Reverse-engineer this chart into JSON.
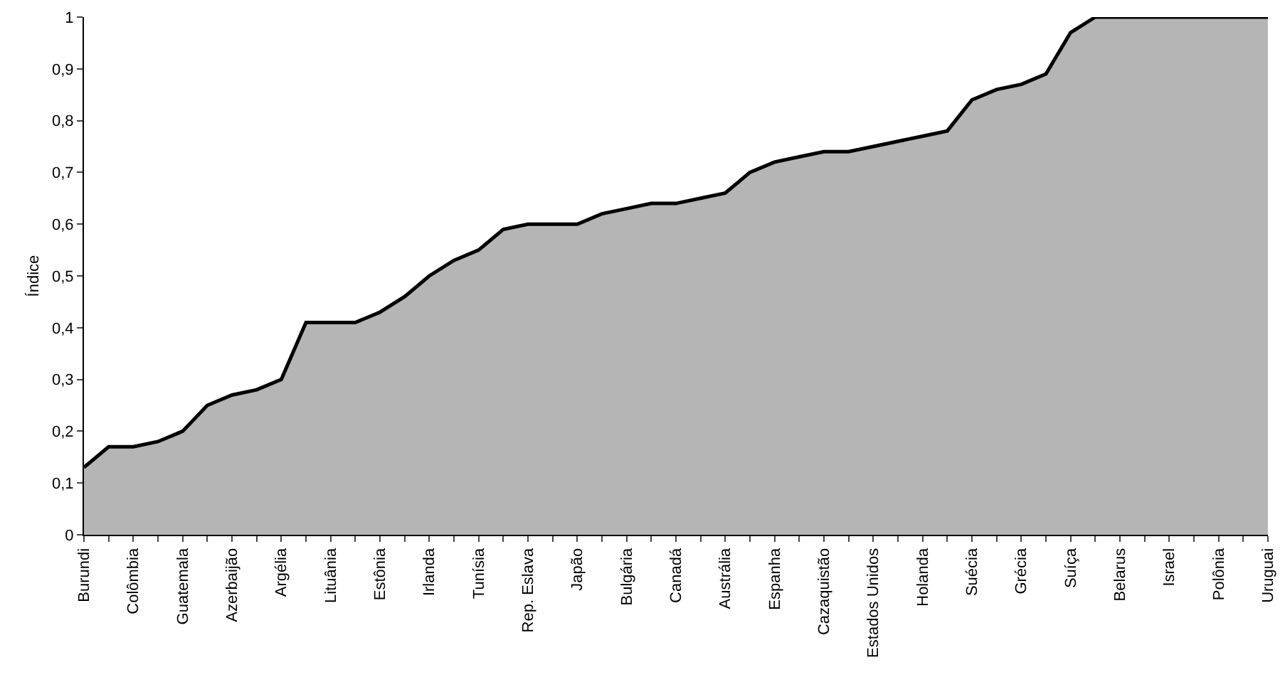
{
  "chart_data": {
    "type": "area",
    "ylabel": "Índice",
    "categories": [
      "Burundi",
      null,
      "Colômbia",
      null,
      "Guatemala",
      null,
      "Azerbaijão",
      null,
      "Argélia",
      null,
      "Lituânia",
      null,
      "Estônia",
      null,
      "Irlanda",
      null,
      "Tunísia",
      null,
      "Rep. Eslava",
      null,
      "Japão",
      null,
      "Bulgária",
      null,
      "Canadá",
      null,
      "Austrália",
      null,
      "Espanha",
      null,
      "Cazaquistão",
      null,
      "Estados Unidos",
      null,
      "Holanda",
      null,
      "Suécia",
      null,
      "Grécia",
      null,
      "Suíça",
      null,
      "Belarus",
      null,
      "Israel",
      null,
      "Polônia",
      null,
      "Uruguai"
    ],
    "values": [
      0.13,
      0.17,
      0.17,
      0.18,
      0.2,
      0.25,
      0.27,
      0.28,
      0.3,
      0.41,
      0.41,
      0.41,
      0.43,
      0.46,
      0.5,
      0.53,
      0.55,
      0.59,
      0.6,
      0.6,
      0.6,
      0.62,
      0.63,
      0.64,
      0.64,
      0.65,
      0.66,
      0.7,
      0.72,
      0.73,
      0.74,
      0.74,
      0.75,
      0.76,
      0.77,
      0.78,
      0.84,
      0.86,
      0.87,
      0.89,
      0.97,
      1,
      1,
      1,
      1,
      1,
      1,
      1,
      1
    ],
    "color": "#b5b5b5",
    "ylim": [
      0,
      1
    ],
    "yticks": [
      0,
      {
        "value": 0.1,
        "label": "0,1"
      },
      {
        "value": 0.2,
        "label": "0,2"
      },
      {
        "value": 0.3,
        "label": "0,3"
      },
      {
        "value": 0.4,
        "label": "0,4"
      },
      {
        "value": 0.5,
        "label": "0,5"
      },
      {
        "value": 0.6,
        "label": "0,6"
      },
      {
        "value": 0.7,
        "label": "0,7"
      },
      {
        "value": 0.8,
        "label": "0,8"
      },
      {
        "value": 0.9,
        "label": "0,9"
      },
      1
    ],
    "grid": false,
    "legend": false
  }
}
